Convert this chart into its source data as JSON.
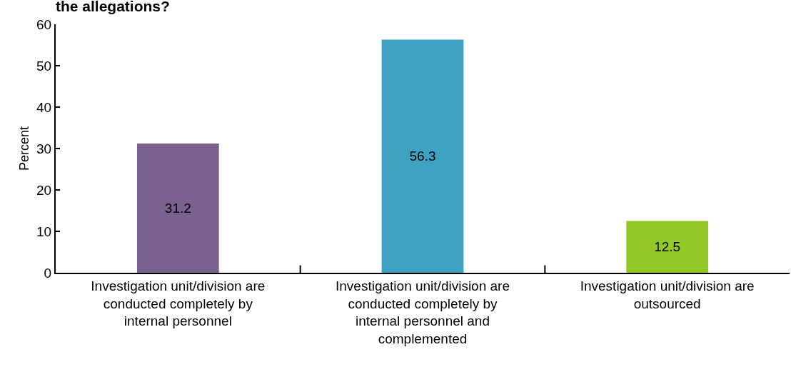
{
  "chart_data": {
    "type": "bar",
    "title": "the allegations?",
    "ylabel": "Percent",
    "categories": [
      "Investigation unit/division are conducted completely by internal personnel",
      "Investigation unit/division are conducted completely by internal personnel and complemented",
      "Investigation unit/division are outsourced"
    ],
    "values": [
      31.2,
      56.3,
      12.5
    ],
    "data_labels": true,
    "colors": [
      "#7b6190",
      "#40a2c3",
      "#94c828"
    ],
    "ylim": [
      0,
      60
    ],
    "yticks": [
      0,
      10,
      20,
      30,
      40,
      50,
      60
    ]
  }
}
